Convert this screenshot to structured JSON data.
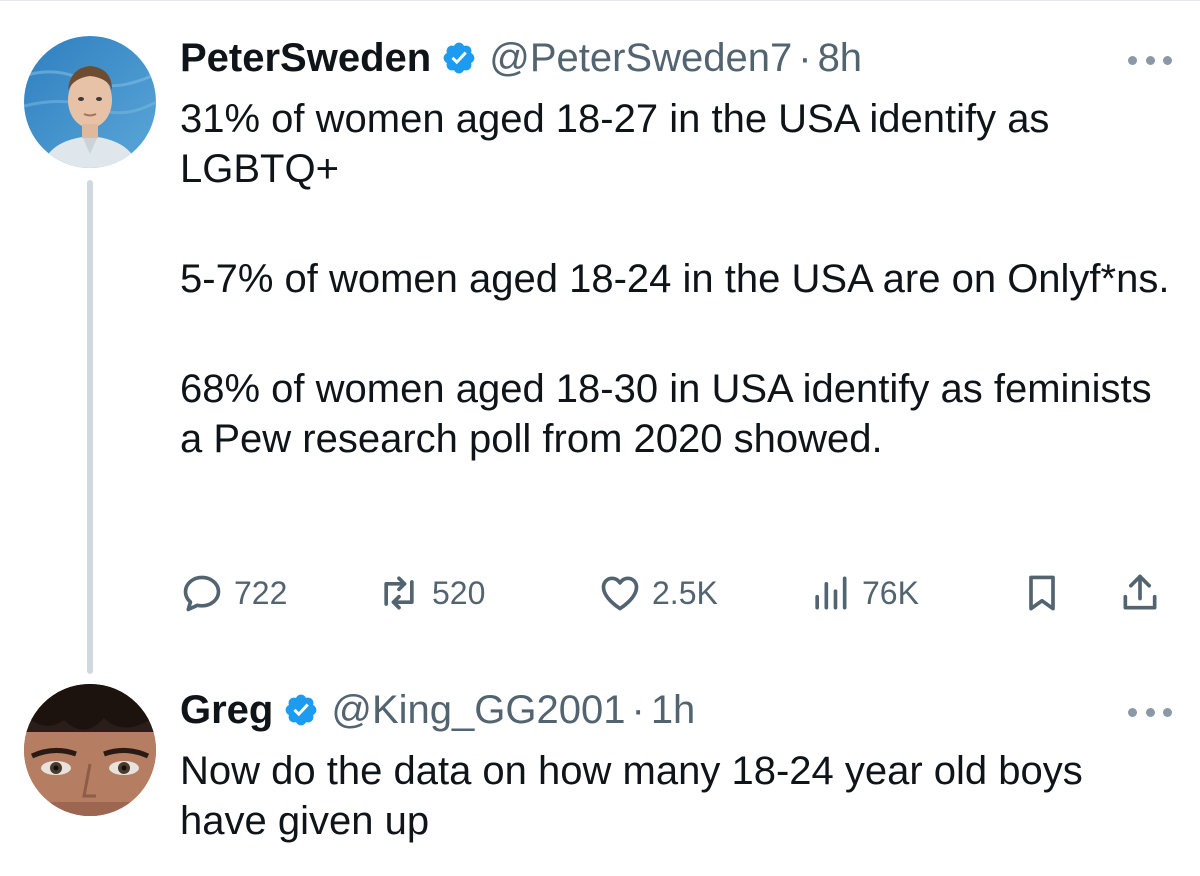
{
  "tweets": [
    {
      "name": "PeterSweden",
      "handle": "@PeterSweden7",
      "separator": "·",
      "time": "8h",
      "verified": true,
      "avatar": "avatar-photo",
      "paragraphs": [
        "31% of women aged 18-27 in the USA identify as LGBTQ+",
        "5-7% of women aged 18-24 in the USA are on Onlyf*ns.",
        "68% of women aged 18-30 in USA identify as feminists a Pew research poll from 2020 showed."
      ],
      "actions": {
        "reply": {
          "icon": "reply-icon",
          "count": "722"
        },
        "retweet": {
          "icon": "retweet-icon",
          "count": "520"
        },
        "like": {
          "icon": "heart-icon",
          "count": "2.5K"
        },
        "views": {
          "icon": "views-icon",
          "count": "76K"
        },
        "bookmark": {
          "icon": "bookmark-icon"
        },
        "share": {
          "icon": "share-icon"
        }
      }
    },
    {
      "name": "Greg",
      "handle": "@King_GG2001",
      "separator": "·",
      "time": "1h",
      "verified": true,
      "avatar": "avatar-photo",
      "paragraphs": [
        "Now do the data on how many 18-24 year old boys have given up"
      ]
    }
  ],
  "colors": {
    "text": "#0f1419",
    "secondary": "#536471",
    "verified": "#1d9bf0",
    "thread_line": "#cfd9de"
  }
}
